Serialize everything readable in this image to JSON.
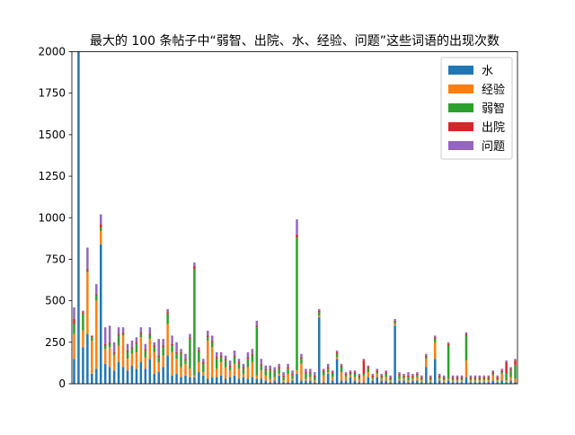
{
  "chart_data": {
    "type": "bar",
    "stacked": true,
    "title": "最大的 100 条帖子中“弱智、出院、水、经验、问题”这些词语的出现次数",
    "xlabel": "",
    "ylabel": "",
    "ylim": [
      0,
      2000
    ],
    "yticks": [
      0,
      250,
      500,
      750,
      1000,
      1250,
      1500,
      1750,
      2000
    ],
    "xticks_visible": false,
    "grid": false,
    "legend_position": "top-right",
    "colors": {
      "水": "#1f77b4",
      "经验": "#ff7f0e",
      "弱智": "#2ca02c",
      "出院": "#d62728",
      "问题": "#9467bd"
    },
    "series": [
      {
        "name": "水",
        "values": [
          150,
          2000,
          220,
          300,
          60,
          90,
          840,
          120,
          100,
          80,
          130,
          100,
          80,
          110,
          90,
          130,
          90,
          150,
          60,
          70,
          100,
          170,
          50,
          60,
          40,
          50,
          40,
          40,
          70,
          50,
          30,
          40,
          40,
          50,
          30,
          40,
          50,
          30,
          40,
          30,
          40,
          30,
          30,
          20,
          10,
          20,
          50,
          10,
          10,
          20,
          60,
          20,
          20,
          20,
          10,
          400,
          10,
          60,
          20,
          150,
          20,
          20,
          40,
          20,
          10,
          10,
          40,
          20,
          40,
          20,
          20,
          10,
          350,
          20,
          20,
          10,
          20,
          20,
          10,
          100,
          10,
          150,
          20,
          10,
          20,
          10,
          10,
          10,
          40,
          10,
          10,
          10,
          10,
          10,
          20,
          10,
          20,
          10,
          20,
          10
        ]
      },
      {
        "name": "经验",
        "values": [
          150,
          0,
          100,
          370,
          200,
          410,
          80,
          90,
          120,
          90,
          100,
          190,
          70,
          70,
          100,
          150,
          70,
          120,
          130,
          60,
          70,
          190,
          140,
          90,
          60,
          70,
          50,
          10,
          60,
          20,
          230,
          180,
          50,
          80,
          70,
          40,
          70,
          60,
          20,
          70,
          90,
          20,
          50,
          30,
          20,
          20,
          10,
          10,
          50,
          10,
          20,
          100,
          10,
          20,
          10,
          10,
          40,
          10,
          20,
          10,
          50,
          20,
          10,
          20,
          20,
          40,
          30,
          10,
          20,
          10,
          20,
          10,
          10,
          10,
          10,
          10,
          10,
          20,
          10,
          50,
          10,
          100,
          10,
          10,
          10,
          10,
          10,
          10,
          100,
          10,
          10,
          10,
          10,
          10,
          30,
          10,
          40,
          10,
          20,
          20
        ]
      },
      {
        "name": "弱智",
        "values": [
          60,
          0,
          100,
          10,
          20,
          30,
          20,
          20,
          20,
          10,
          60,
          10,
          40,
          30,
          50,
          20,
          40,
          20,
          30,
          30,
          50,
          60,
          40,
          30,
          80,
          20,
          180,
          640,
          60,
          50,
          20,
          30,
          60,
          30,
          40,
          20,
          40,
          30,
          30,
          50,
          40,
          290,
          30,
          30,
          50,
          30,
          30,
          20,
          30,
          20,
          800,
          30,
          30,
          20,
          20,
          20,
          20,
          20,
          20,
          20,
          30,
          10,
          10,
          20,
          10,
          10,
          20,
          10,
          10,
          10,
          20,
          10,
          10,
          20,
          10,
          20,
          10,
          10,
          10,
          10,
          10,
          20,
          10,
          10,
          200,
          10,
          10,
          10,
          150,
          10,
          10,
          10,
          10,
          10,
          10,
          10,
          10,
          40,
          40,
          80
        ]
      },
      {
        "name": "出院",
        "values": [
          30,
          0,
          10,
          10,
          10,
          10,
          20,
          10,
          10,
          10,
          10,
          10,
          10,
          10,
          10,
          10,
          10,
          10,
          10,
          10,
          10,
          10,
          10,
          10,
          10,
          10,
          10,
          20,
          10,
          10,
          10,
          10,
          10,
          10,
          10,
          10,
          10,
          10,
          10,
          10,
          10,
          10,
          10,
          10,
          10,
          10,
          10,
          10,
          10,
          10,
          20,
          10,
          10,
          10,
          10,
          10,
          10,
          10,
          10,
          10,
          10,
          10,
          10,
          10,
          10,
          80,
          10,
          10,
          10,
          10,
          10,
          10,
          10,
          10,
          10,
          10,
          10,
          10,
          10,
          10,
          10,
          10,
          10,
          10,
          10,
          10,
          10,
          10,
          10,
          10,
          10,
          10,
          10,
          10,
          10,
          10,
          10,
          70,
          10,
          30
        ]
      },
      {
        "name": "问题",
        "values": [
          70,
          0,
          10,
          130,
          0,
          60,
          60,
          100,
          100,
          60,
          40,
          30,
          40,
          40,
          30,
          30,
          30,
          40,
          20,
          100,
          40,
          20,
          50,
          60,
          20,
          30,
          20,
          20,
          20,
          20,
          30,
          30,
          30,
          20,
          20,
          30,
          30,
          20,
          20,
          30,
          30,
          30,
          30,
          20,
          20,
          20,
          20,
          20,
          20,
          20,
          90,
          20,
          20,
          20,
          20,
          10,
          10,
          20,
          10,
          10,
          10,
          10,
          10,
          10,
          10,
          10,
          10,
          10,
          10,
          10,
          10,
          10,
          10,
          10,
          10,
          20,
          10,
          10,
          10,
          10,
          10,
          10,
          10,
          10,
          10,
          10,
          10,
          10,
          10,
          10,
          10,
          10,
          10,
          10,
          10,
          10,
          10,
          10,
          10,
          10
        ]
      }
    ]
  }
}
